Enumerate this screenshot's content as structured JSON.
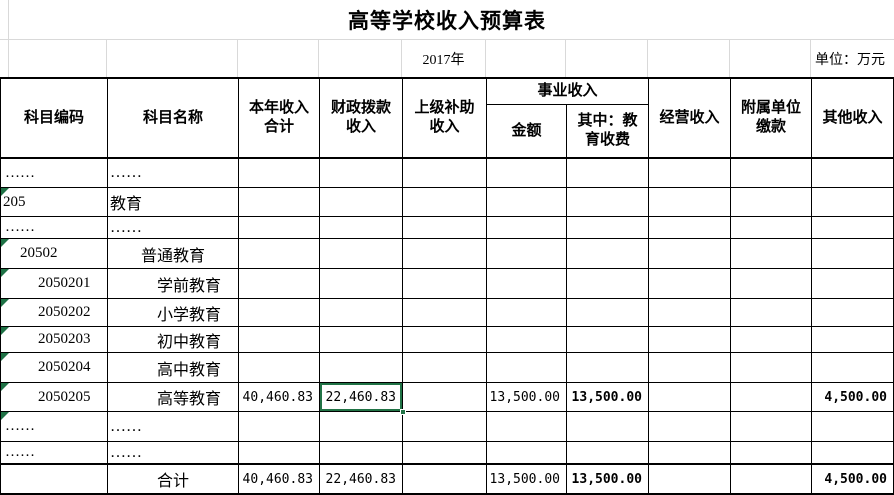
{
  "title": "高等学校收入预算表",
  "meta": {
    "year": "2017年",
    "unit": "单位：万元"
  },
  "header": {
    "group_business_income": "事业收入",
    "cols": {
      "code": "科目编码",
      "name": "科目名称",
      "total": "本年收入\n合计",
      "fiscal": "财政拨款\n收入",
      "subsidy": "上级补助\n收入",
      "amount": "金额",
      "edu_fee": "其中：教\n育收费",
      "operating": "经营收入",
      "affiliated": "附属单位\n缴款",
      "other": "其他收入"
    }
  },
  "rows": [
    {
      "code": "……",
      "name": "……",
      "level": 0,
      "triangle": false,
      "values": [
        "",
        "",
        "",
        "",
        "",
        "",
        "",
        ""
      ]
    },
    {
      "code": "205",
      "name": "教育",
      "level": 1,
      "triangle": true,
      "values": [
        "",
        "",
        "",
        "",
        "",
        "",
        "",
        ""
      ]
    },
    {
      "code": "……",
      "name": "……",
      "level": 0,
      "triangle": false,
      "values": [
        "",
        "",
        "",
        "",
        "",
        "",
        "",
        ""
      ]
    },
    {
      "code": "20502",
      "name": "普通教育",
      "level": 2,
      "triangle": true,
      "values": [
        "",
        "",
        "",
        "",
        "",
        "",
        "",
        ""
      ]
    },
    {
      "code": "2050201",
      "name": "学前教育",
      "level": 3,
      "triangle": true,
      "values": [
        "",
        "",
        "",
        "",
        "",
        "",
        "",
        ""
      ]
    },
    {
      "code": "2050202",
      "name": "小学教育",
      "level": 3,
      "triangle": true,
      "values": [
        "",
        "",
        "",
        "",
        "",
        "",
        "",
        ""
      ]
    },
    {
      "code": "2050203",
      "name": "初中教育",
      "level": 3,
      "triangle": true,
      "values": [
        "",
        "",
        "",
        "",
        "",
        "",
        "",
        ""
      ]
    },
    {
      "code": "2050204",
      "name": "高中教育",
      "level": 3,
      "triangle": true,
      "values": [
        "",
        "",
        "",
        "",
        "",
        "",
        "",
        ""
      ]
    },
    {
      "code": "2050205",
      "name": "高等教育",
      "level": 3,
      "triangle": true,
      "values": [
        "40,460.83",
        "22,460.83",
        "",
        "13,500.00",
        "13,500.00",
        "",
        "",
        "4,500.00"
      ],
      "bold_cols": [
        4,
        7
      ]
    },
    {
      "code": "……",
      "name": "……",
      "level": 0,
      "triangle": true,
      "values": [
        "",
        "",
        "",
        "",
        "",
        "",
        "",
        ""
      ]
    },
    {
      "code": "……",
      "name": "……",
      "level": 0,
      "triangle": false,
      "values": [
        "",
        "",
        "",
        "",
        "",
        "",
        "",
        ""
      ]
    },
    {
      "code": "",
      "name": "合计",
      "level": 0,
      "name_align": "center",
      "triangle": false,
      "values": [
        "40,460.83",
        "22,460.83",
        "",
        "13,500.00",
        "13,500.00",
        "",
        "",
        "4,500.00"
      ],
      "bold_cols": [
        4,
        7
      ]
    }
  ],
  "selection": {
    "row": 8,
    "col": 1
  },
  "colors": {
    "accent_green": "#217346",
    "triangle_green": "#1e7145",
    "grid_black": "#000000",
    "grid_faint": "#d9d9d9"
  }
}
